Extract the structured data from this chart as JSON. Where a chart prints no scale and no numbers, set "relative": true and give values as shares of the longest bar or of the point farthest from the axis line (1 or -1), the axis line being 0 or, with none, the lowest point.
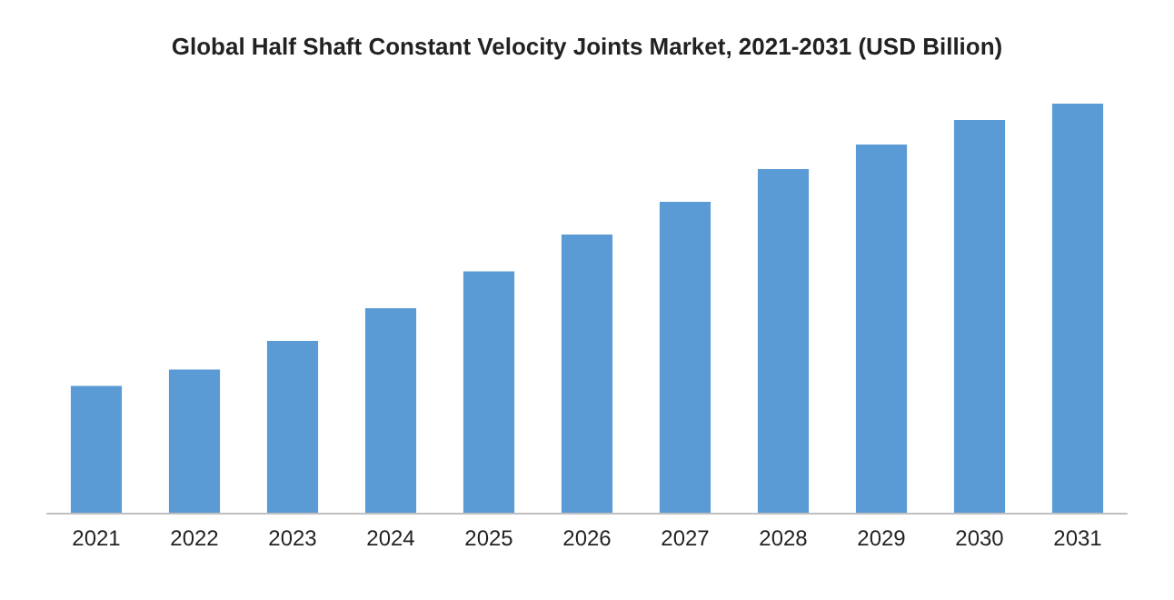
{
  "chart_data": {
    "type": "bar",
    "title": "Global Half Shaft Constant Velocity Joints Market, 2021-2031 (USD Billion)",
    "categories": [
      "2021",
      "2022",
      "2023",
      "2024",
      "2025",
      "2026",
      "2027",
      "2028",
      "2029",
      "2030",
      "2031"
    ],
    "values": [
      0.31,
      0.35,
      0.42,
      0.5,
      0.59,
      0.68,
      0.76,
      0.84,
      0.9,
      0.96,
      1
    ],
    "color": "#5b9bd5",
    "relative": true
  }
}
